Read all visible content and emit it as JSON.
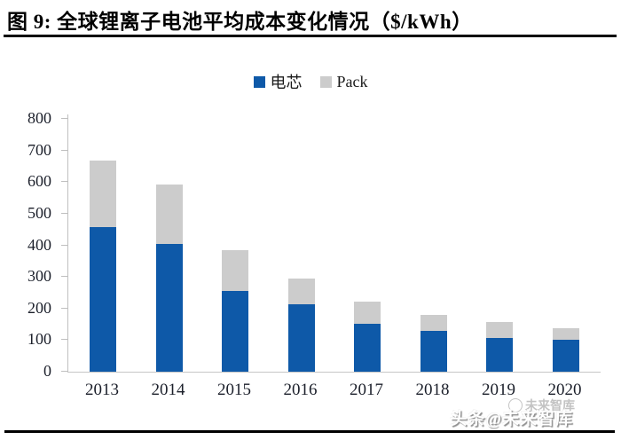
{
  "figure": {
    "title": "图 9: 全球锂离子电池平均成本变化情况（$/kWh）"
  },
  "watermark": {
    "ghost_text": "未来智库",
    "main_text": "头条@未来智库"
  },
  "chart_data": {
    "type": "bar",
    "stacked": true,
    "title": "图 9: 全球锂离子电池平均成本变化情况（$/kWh）",
    "unit": "$/kWh",
    "categories": [
      "2013",
      "2014",
      "2015",
      "2016",
      "2017",
      "2018",
      "2019",
      "2020"
    ],
    "series": [
      {
        "name": "电芯",
        "color": "#0E59A8",
        "values": [
          458,
          403,
          255,
          212,
          152,
          128,
          108,
          102
        ]
      },
      {
        "name": "Pack",
        "color": "#CCCCCC",
        "values": [
          210,
          189,
          129,
          83,
          69,
          53,
          49,
          35
        ]
      }
    ],
    "totals": [
      668,
      592,
      384,
      295,
      221,
      181,
      157,
      137
    ],
    "xlabel": "",
    "ylabel": "",
    "ylim": [
      0,
      800
    ],
    "yticks": [
      0,
      100,
      200,
      300,
      400,
      500,
      600,
      700,
      800
    ],
    "grid": false,
    "legend_position": "top-center",
    "axis_color": "#BFBFBF"
  }
}
